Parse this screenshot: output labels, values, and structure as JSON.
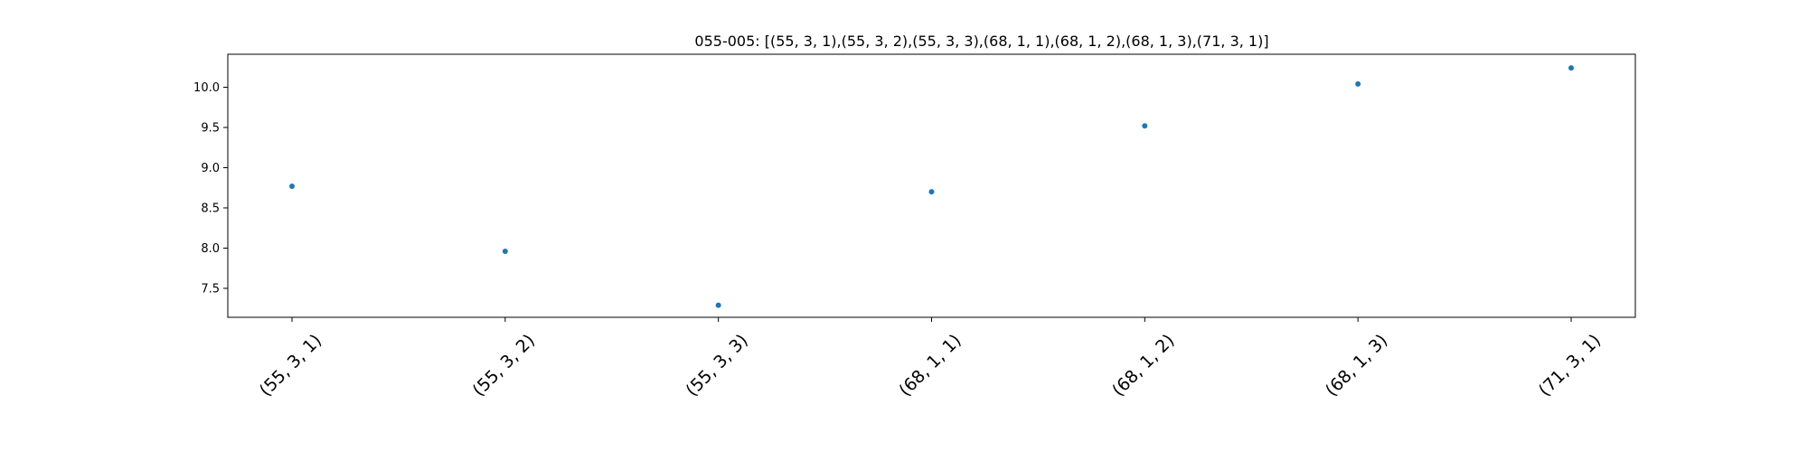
{
  "chart_data": {
    "type": "scatter",
    "title": "055-005: [(55, 3, 1),(55, 3, 2),(55, 3, 3),(68, 1, 1),(68, 1, 2),(68, 1, 3),(71, 3, 1)]",
    "xlabel": "",
    "ylabel": "",
    "categories": [
      "(55, 3, 1)",
      "(55, 3, 2)",
      "(55, 3, 3)",
      "(68, 1, 1)",
      "(68, 1, 2)",
      "(68, 1, 3)",
      "(71, 3, 1)"
    ],
    "values": [
      8.77,
      7.96,
      7.29,
      8.7,
      9.52,
      10.04,
      10.24
    ],
    "ylim": [
      7.14,
      10.41
    ],
    "yticks": [
      "7.5",
      "8.0",
      "8.5",
      "9.0",
      "9.5",
      "10.0"
    ],
    "marker_color": "#1f77b4",
    "grid": false,
    "legend": "none"
  }
}
